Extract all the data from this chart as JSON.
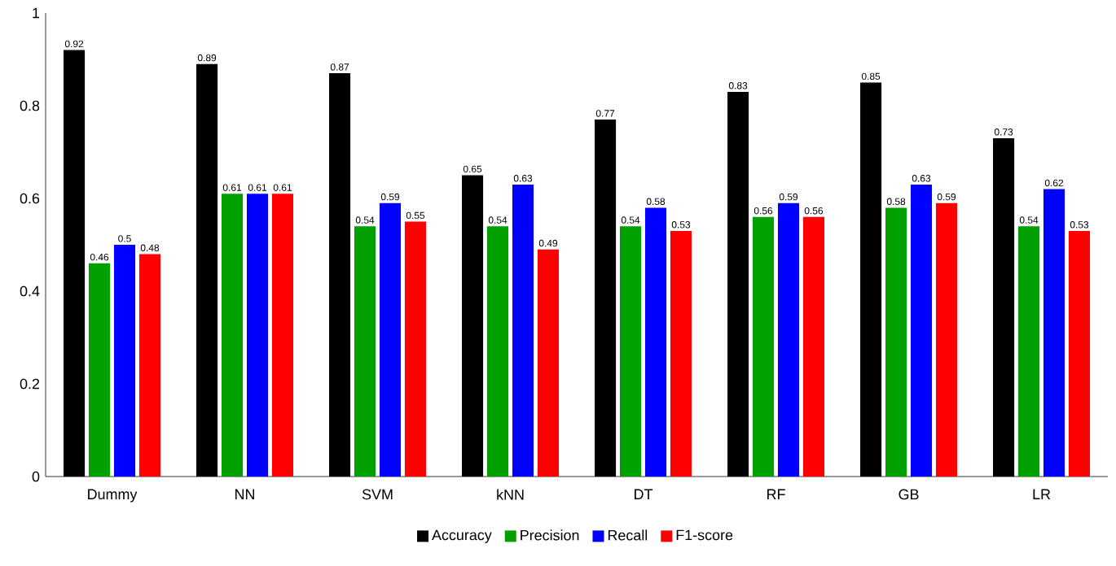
{
  "chart_data": {
    "type": "bar",
    "categories": [
      "Dummy",
      "NN",
      "SVM",
      "kNN",
      "DT",
      "RF",
      "GB",
      "LR"
    ],
    "series": [
      {
        "name": "Accuracy",
        "color": "#000000",
        "values": [
          0.92,
          0.89,
          0.87,
          0.65,
          0.77,
          0.83,
          0.85,
          0.73
        ]
      },
      {
        "name": "Precision",
        "color": "#00a000",
        "values": [
          0.46,
          0.61,
          0.54,
          0.54,
          0.54,
          0.56,
          0.58,
          0.54
        ]
      },
      {
        "name": "Recall",
        "color": "#0000ff",
        "values": [
          0.5,
          0.61,
          0.59,
          0.63,
          0.58,
          0.59,
          0.63,
          0.62
        ]
      },
      {
        "name": "F1-score",
        "color": "#ff0000",
        "values": [
          0.48,
          0.61,
          0.55,
          0.49,
          0.53,
          0.56,
          0.59,
          0.53
        ]
      }
    ],
    "ylim": [
      0,
      1
    ],
    "yticks": [
      0,
      0.2,
      0.4,
      0.6,
      0.8,
      1
    ],
    "data_labels": true,
    "legend": "bottom",
    "grid": false
  }
}
